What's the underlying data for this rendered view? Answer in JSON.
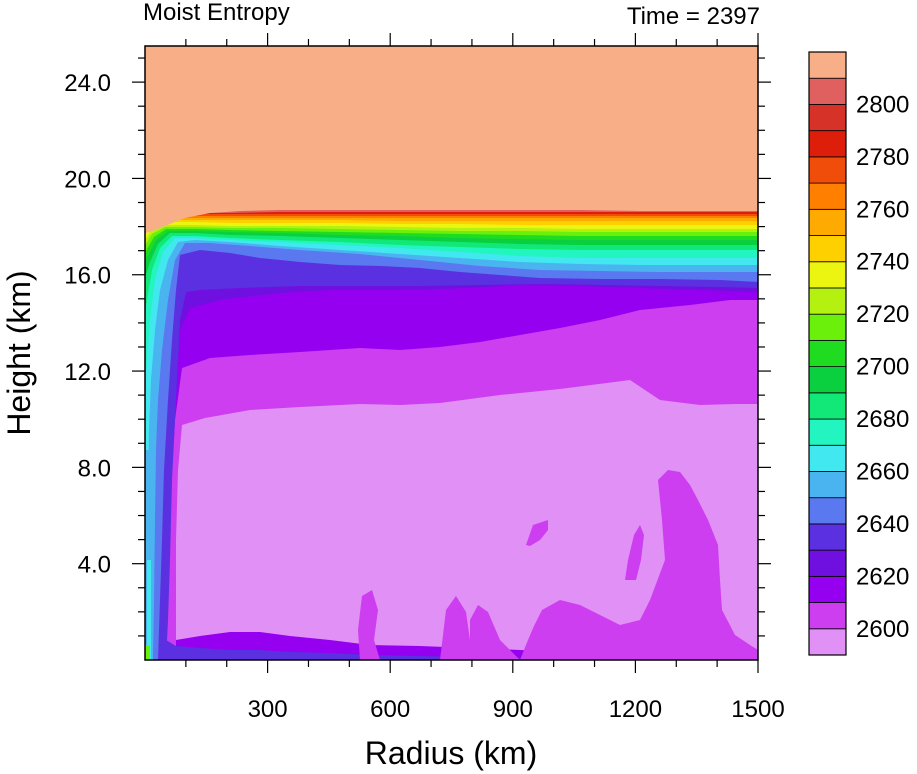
{
  "chart_data": {
    "type": "heatmap",
    "title": "Moist Entropy",
    "time_label": "Time = 2397",
    "xlabel": "Radius (km)",
    "ylabel": "Height (km)",
    "xlim": [
      0,
      1500
    ],
    "ylim": [
      0,
      25.5
    ],
    "x_ticks": [
      300,
      600,
      900,
      1200,
      1500
    ],
    "x_tick_labels": [
      "300",
      "600",
      "900",
      "1200",
      "1500"
    ],
    "y_ticks": [
      4,
      8,
      12,
      16,
      20,
      24
    ],
    "y_tick_labels": [
      "4.0",
      "8.0",
      "12.0",
      "16.0",
      "20.0",
      "24.0"
    ],
    "colorbar": {
      "levels": [
        2600,
        2610,
        2620,
        2630,
        2640,
        2650,
        2660,
        2670,
        2680,
        2690,
        2700,
        2710,
        2720,
        2730,
        2740,
        2750,
        2760,
        2770,
        2780,
        2790,
        2800
      ],
      "tick_labels": [
        "2600",
        "2620",
        "2640",
        "2660",
        "2680",
        "2700",
        "2720",
        "2740",
        "2760",
        "2780",
        "2800"
      ],
      "colors": [
        "#e190f5",
        "#cc3ef0",
        "#9500f0",
        "#7010e0",
        "#5a30e0",
        "#5a78ef",
        "#4ab4f0",
        "#42e8ef",
        "#22f5c0",
        "#12e878",
        "#0ad040",
        "#20dc20",
        "#6af00a",
        "#b4f010",
        "#ecf510",
        "#ffd000",
        "#ffaa00",
        "#ff8000",
        "#f04d0a",
        "#dc1e0a",
        "#d63228",
        "#e06060",
        "#f8af88"
      ]
    },
    "contour_bands_at_outer_radius": [
      {
        "label": "2600",
        "from_km": 0.0,
        "to_km": 10.7
      },
      {
        "label": "2610",
        "from_km": 10.7,
        "to_km": 15.0
      },
      {
        "label": "2620",
        "from_km": 15.0,
        "to_km": 15.6
      },
      {
        "label": "2640",
        "from_km": 15.6,
        "to_km": 16.2
      },
      {
        "label": "2660-2700",
        "from_km": 16.2,
        "to_km": 17.0
      },
      {
        "label": "2720-2760",
        "from_km": 17.0,
        "to_km": 17.9
      },
      {
        "label": "2780",
        "from_km": 17.9,
        "to_km": 18.6
      },
      {
        "label": "2800",
        "from_km": 18.6,
        "to_km": 25.5
      }
    ]
  }
}
